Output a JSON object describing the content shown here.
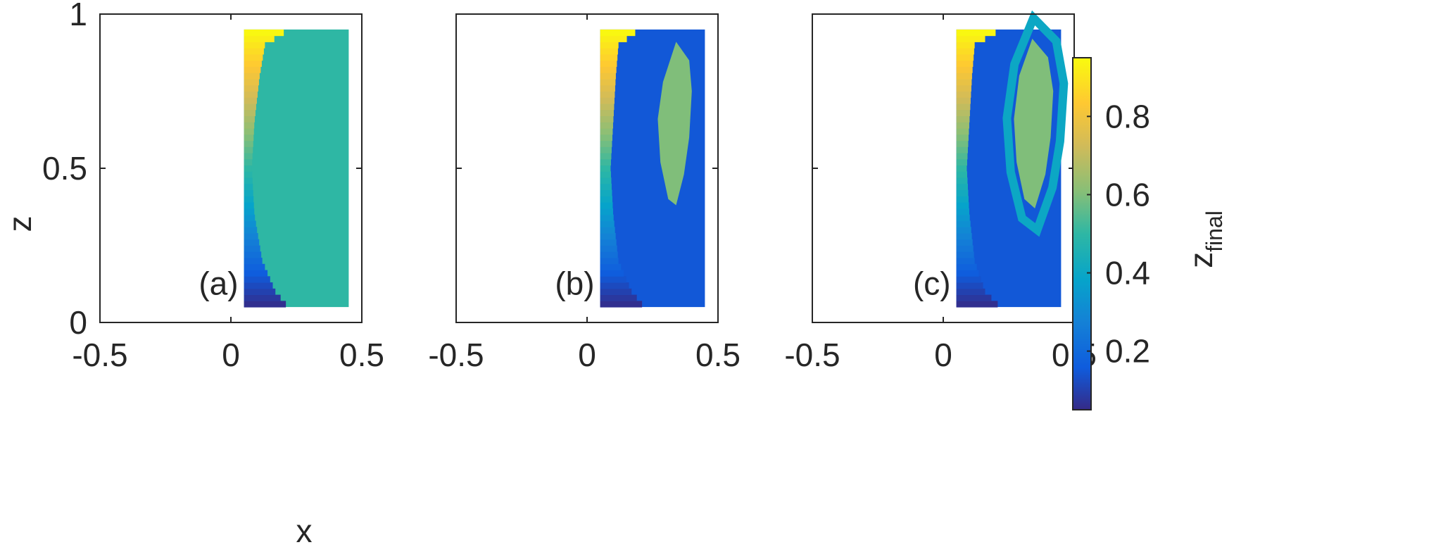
{
  "chart_data": {
    "type": "heatmap",
    "colormap": "parula",
    "shared_axes": {
      "xlabel": "x",
      "ylabel": "z",
      "xlim": [
        -0.5,
        0.5
      ],
      "ylim": [
        0,
        1
      ],
      "xticks": [
        -0.5,
        0,
        0.5
      ],
      "xtick_labels": [
        "-0.5",
        "0",
        "0.5"
      ],
      "yticks": [
        0,
        0.5,
        1
      ],
      "ytick_labels": [
        "0",
        "0.5",
        "1"
      ]
    },
    "data_extent": {
      "x": [
        0.05,
        0.45
      ],
      "z": [
        0.05,
        0.95
      ]
    },
    "grid": false,
    "panels": [
      {
        "label": "(a)",
        "description": "left edge column colored by initial z; interior region uniform value",
        "edge_boundary_x": [
          [
            0.95,
            0.22
          ],
          [
            0.9,
            0.13
          ],
          [
            0.8,
            0.11
          ],
          [
            0.65,
            0.09
          ],
          [
            0.5,
            0.08
          ],
          [
            0.35,
            0.09
          ],
          [
            0.2,
            0.12
          ],
          [
            0.1,
            0.17
          ],
          [
            0.05,
            0.22
          ]
        ],
        "interior_value": 0.5
      },
      {
        "label": "(b)",
        "edge_boundary_x": [
          [
            0.95,
            0.2
          ],
          [
            0.9,
            0.12
          ],
          [
            0.8,
            0.11
          ],
          [
            0.65,
            0.1
          ],
          [
            0.5,
            0.09
          ],
          [
            0.35,
            0.1
          ],
          [
            0.2,
            0.12
          ],
          [
            0.1,
            0.17
          ],
          [
            0.05,
            0.22
          ]
        ],
        "background_value": 0.15,
        "inner_blob": {
          "value": 0.6,
          "outline": [
            [
              0.34,
              0.91
            ],
            [
              0.39,
              0.85
            ],
            [
              0.4,
              0.75
            ],
            [
              0.39,
              0.6
            ],
            [
              0.37,
              0.48
            ],
            [
              0.34,
              0.38
            ],
            [
              0.31,
              0.4
            ],
            [
              0.28,
              0.52
            ],
            [
              0.27,
              0.66
            ],
            [
              0.29,
              0.78
            ]
          ]
        }
      },
      {
        "label": "(c)",
        "edge_boundary_x": [
          [
            0.95,
            0.22
          ],
          [
            0.9,
            0.12
          ],
          [
            0.8,
            0.11
          ],
          [
            0.65,
            0.1
          ],
          [
            0.5,
            0.09
          ],
          [
            0.35,
            0.1
          ],
          [
            0.2,
            0.12
          ],
          [
            0.1,
            0.16
          ],
          [
            0.05,
            0.22
          ]
        ],
        "background_value": 0.15,
        "ring_value": 0.4,
        "inner_blob": {
          "value": 0.6,
          "outline": [
            [
              0.34,
              0.92
            ],
            [
              0.4,
              0.86
            ],
            [
              0.42,
              0.75
            ],
            [
              0.41,
              0.6
            ],
            [
              0.39,
              0.48
            ],
            [
              0.35,
              0.37
            ],
            [
              0.31,
              0.4
            ],
            [
              0.28,
              0.52
            ],
            [
              0.27,
              0.66
            ],
            [
              0.29,
              0.8
            ]
          ]
        }
      }
    ],
    "colorbar": {
      "label": "z",
      "label_subscript": "final",
      "range": [
        0.05,
        0.95
      ],
      "ticks": [
        0.2,
        0.4,
        0.6,
        0.8
      ],
      "tick_labels": [
        "0.2",
        "0.4",
        "0.6",
        "0.8"
      ]
    }
  }
}
